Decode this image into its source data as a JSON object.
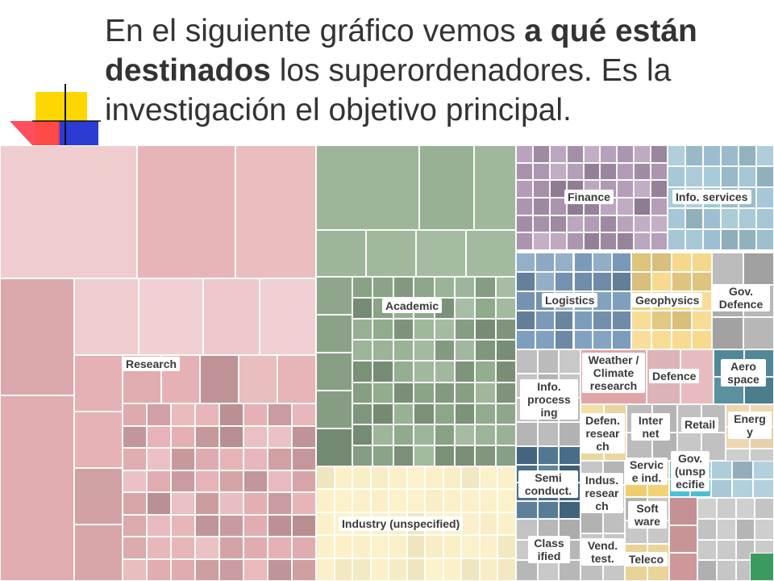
{
  "headline": {
    "part1": "En el siguiente gráfico vemos ",
    "bold1": "a qué están destinados",
    "part2": " los superordenadores. Es la investigación el objetivo principal."
  },
  "decoration": {
    "colors": [
      "#ffd700",
      "#2b3bd4",
      "#ff3344"
    ]
  },
  "treemap": {
    "labels": {
      "research": "Research",
      "academic": "Academic",
      "industry": "Industry (unspecified)",
      "finance": "Finance",
      "info_services": "Info. services",
      "logistics": "Logistics",
      "geophysics": "Geophysics",
      "gov_defence": "Gov. Defence",
      "info_processing": "Info. process ing",
      "weather": "Weather / Climate research",
      "defence": "Defence",
      "aerospace": "Aero space",
      "defence_research": "Defen. resear ch",
      "internet": "Inter net",
      "retail": "Retail",
      "energy": "Energ y",
      "semiconductor": "Semi conduct.",
      "industrial_research": "Indus. resear ch",
      "service_ind": "Servic e ind.",
      "gov_unspecified": "Gov. (unsp ecifie",
      "software": "Soft ware",
      "classified": "Class ified",
      "vendor_test": "Vend. test.",
      "telecom": "Teleco"
    },
    "colors": {
      "research": "#e6b1b4",
      "academic": "#93ad8f",
      "industry": "#fbf0c8",
      "finance": "#b49cb8",
      "info_services": "#a3c6d6",
      "logistics": "#7d9dbd",
      "geophysics": "#f7d98c",
      "gov_defence": "#b5b5b5",
      "weather": "#e0a5a8",
      "aerospace": "#4f8797",
      "semiconductor": "#4a708d",
      "service_ind": "#f0d070",
      "gov_unspecified": "#4ac0d6",
      "energy": "#ecd6b0",
      "misc_grey": "#c3c3c3"
    }
  }
}
